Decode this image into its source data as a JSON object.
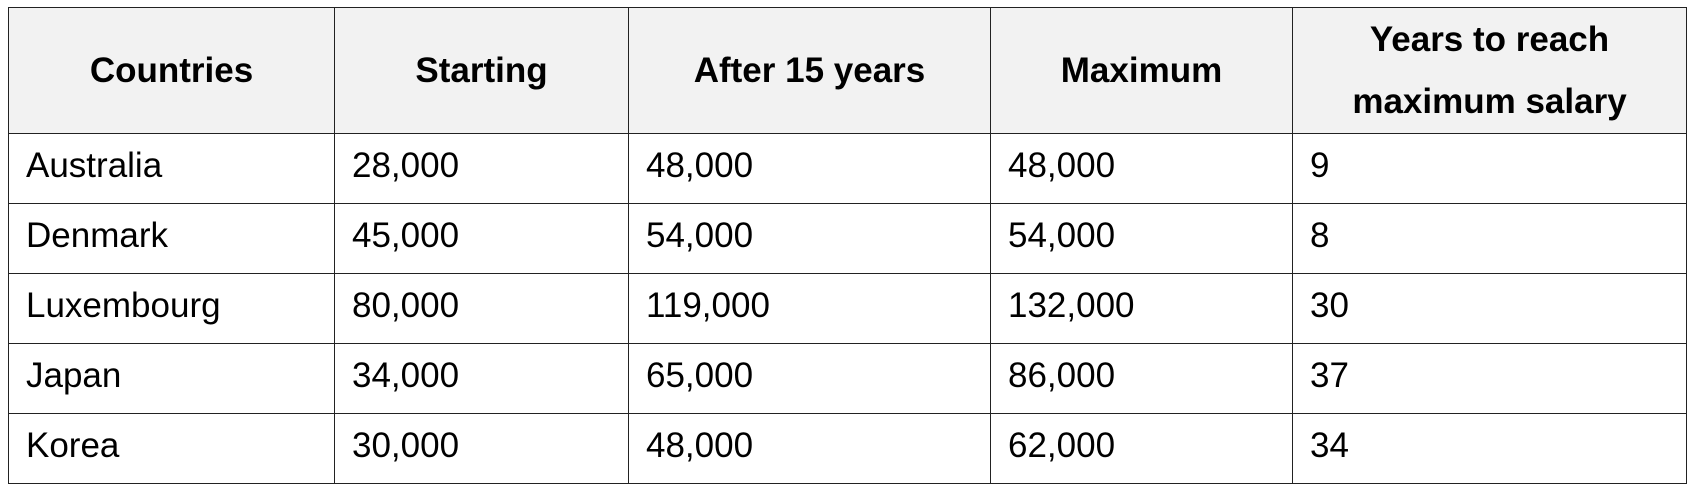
{
  "table": {
    "headers": [
      "Countries",
      "Starting",
      "After 15 years",
      "Maximum",
      "Years to reach maximum salary"
    ],
    "rows": [
      [
        "Australia",
        "28,000",
        "48,000",
        "48,000",
        "9"
      ],
      [
        "Denmark",
        "45,000",
        "54,000",
        "54,000",
        "8"
      ],
      [
        "Luxembourg",
        "80,000",
        "119,000",
        "132,000",
        "30"
      ],
      [
        "Japan",
        "34,000",
        "65,000",
        "86,000",
        "37"
      ],
      [
        "Korea",
        "30,000",
        "48,000",
        "62,000",
        "34"
      ]
    ]
  },
  "colors": {
    "header_background": "#f2f2f2",
    "border": "#222222",
    "text": "#000000"
  }
}
